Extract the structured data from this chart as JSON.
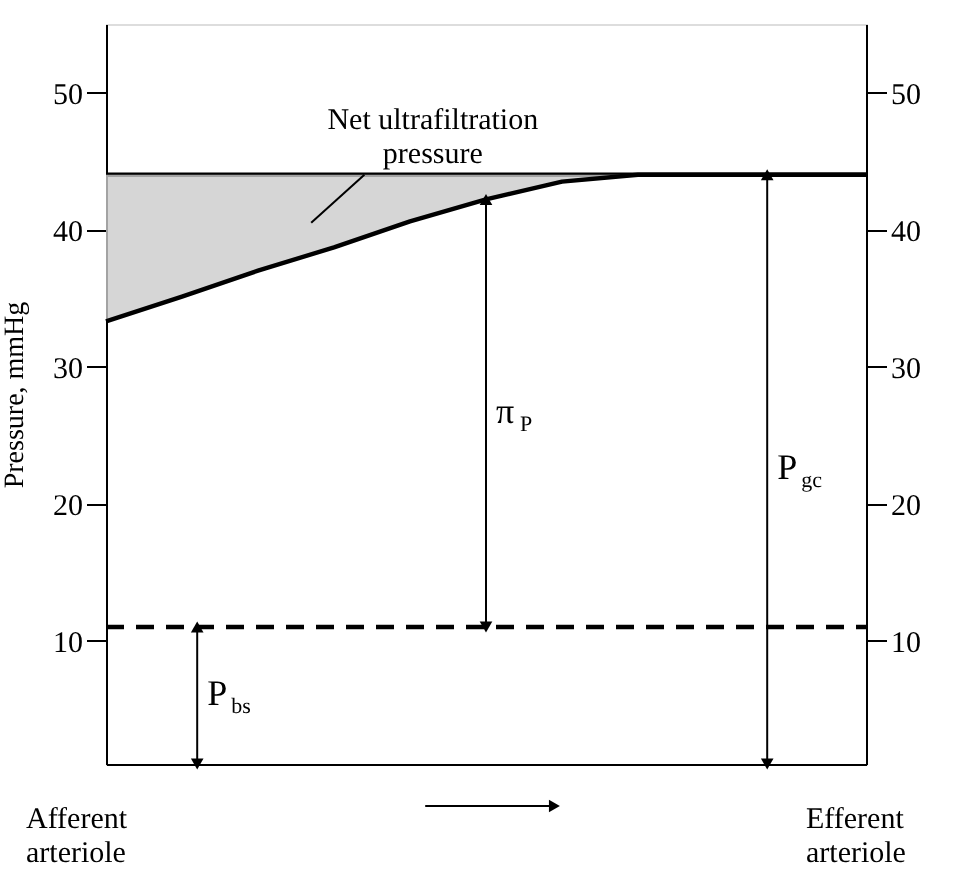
{
  "chart_data": {
    "type": "line",
    "ylabel": "Pressure, mmHg",
    "categories": [
      null,
      null,
      null,
      null,
      null,
      null,
      null,
      null,
      null,
      null,
      null
    ],
    "series": [
      {
        "color": "#000000",
        "values": [
          44,
          44,
          44,
          44,
          44,
          44,
          44,
          44,
          44,
          44,
          44
        ]
      },
      {
        "color": "#000000",
        "values": [
          33.3,
          35.1,
          37.0,
          38.7,
          40.6,
          42.2,
          43.5,
          44,
          44,
          44,
          44
        ],
        "lower": [
          33.3,
          35.1,
          37.0,
          38.7,
          40.6,
          42.2,
          43.5,
          44,
          44,
          44,
          44
        ],
        "upper": [
          44,
          44,
          44,
          44,
          44,
          44,
          44,
          44,
          44,
          44,
          44
        ]
      },
      {
        "color": "#000000",
        "values": [
          11,
          11,
          11,
          11,
          11,
          11,
          11,
          11,
          11,
          11,
          11
        ],
        "line_style": "dashed"
      }
    ],
    "ylim": [
      1,
      55
    ],
    "yticks": [
      10,
      20,
      30,
      40,
      50
    ],
    "y2lim": [
      1,
      55
    ],
    "y2ticks": [
      10,
      20,
      30,
      40,
      50
    ],
    "tick_labels": "y",
    "marker": "none",
    "annotations": [
      "Net ultrafiltration pressure",
      "π$_{P}$",
      "P$_{gc}$",
      "P$_{bs}$",
      "Afferent arteriole",
      "Efferent arteriole"
    ]
  }
}
